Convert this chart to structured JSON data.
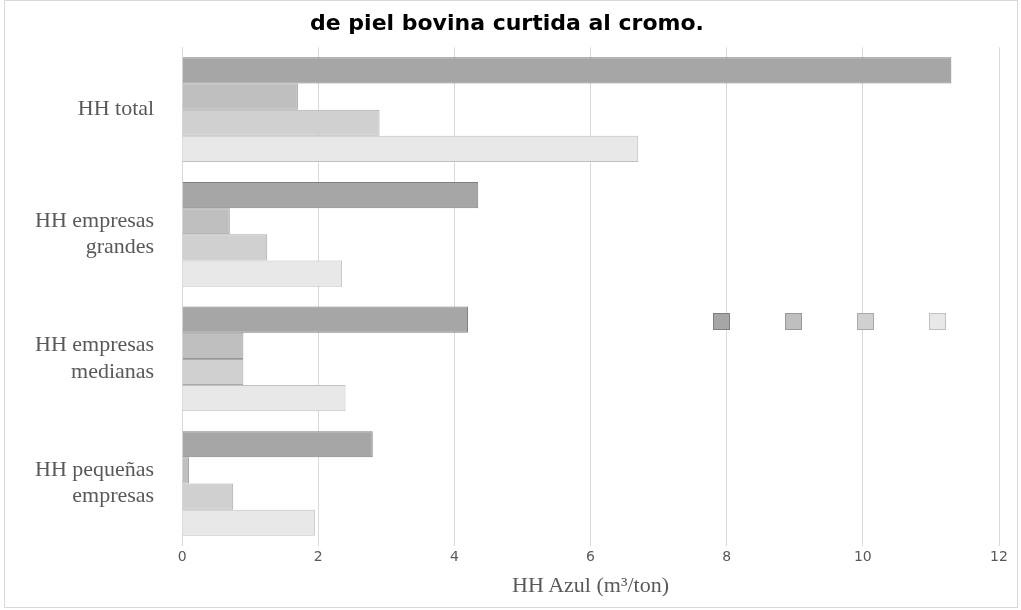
{
  "chart_data": {
    "type": "bar",
    "orientation": "horizontal",
    "title": "de piel bovina curtida al cromo.",
    "xlabel": "HH Azul (m³/ton)",
    "categories": [
      "HH total",
      "HH empresas grandes",
      "HH empresas medianas",
      "HH pequeñas empresas"
    ],
    "series": [
      {
        "color": "#a6a6a6",
        "values": [
          11.3,
          4.35,
          4.2,
          2.8
        ]
      },
      {
        "color": "#bfbfbf",
        "values": [
          1.7,
          0.7,
          0.9,
          0.1
        ]
      },
      {
        "color": "#d0d0d0",
        "values": [
          2.9,
          1.25,
          0.9,
          0.75
        ]
      },
      {
        "color": "#e8e8e8",
        "values": [
          6.7,
          2.35,
          2.4,
          1.95
        ]
      }
    ],
    "xlim": [
      0,
      12
    ],
    "xticks": [
      0,
      2,
      4,
      6,
      8,
      10,
      12
    ],
    "grid": "x"
  }
}
